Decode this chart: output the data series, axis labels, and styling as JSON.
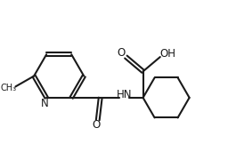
{
  "bg_color": "#ffffff",
  "line_color": "#1a1a1a",
  "text_color": "#1a1a1a",
  "bond_lw": 1.5,
  "dbo": 0.06,
  "figsize": [
    2.56,
    1.8
  ],
  "dpi": 100,
  "xlim": [
    0,
    8.5
  ],
  "ylim": [
    0,
    6.0
  ]
}
